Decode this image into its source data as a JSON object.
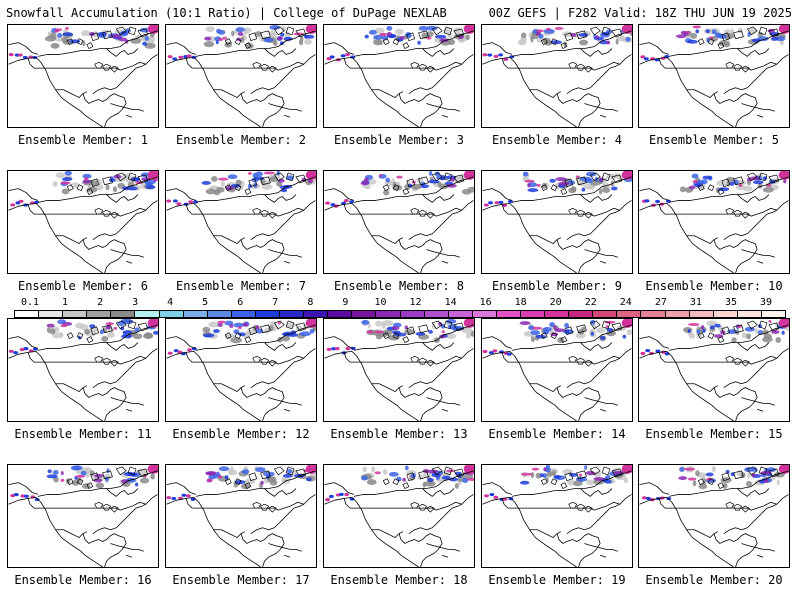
{
  "header": {
    "title_left": "Snowfall Accumulation (10:1 Ratio) | College of DuPage NEXLAB",
    "title_right": "00Z GEFS | F282 Valid: 18Z THU JUN 19 2025"
  },
  "panels": [
    {
      "label": "Ensemble Member: 1"
    },
    {
      "label": "Ensemble Member: 2"
    },
    {
      "label": "Ensemble Member: 3"
    },
    {
      "label": "Ensemble Member: 4"
    },
    {
      "label": "Ensemble Member: 5"
    },
    {
      "label": "Ensemble Member: 6"
    },
    {
      "label": "Ensemble Member: 7"
    },
    {
      "label": "Ensemble Member: 8"
    },
    {
      "label": "Ensemble Member: 9"
    },
    {
      "label": "Ensemble Member: 10"
    },
    {
      "label": "Ensemble Member: 11"
    },
    {
      "label": "Ensemble Member: 12"
    },
    {
      "label": "Ensemble Member: 13"
    },
    {
      "label": "Ensemble Member: 14"
    },
    {
      "label": "Ensemble Member: 15"
    },
    {
      "label": "Ensemble Member: 16"
    },
    {
      "label": "Ensemble Member: 17"
    },
    {
      "label": "Ensemble Member: 18"
    },
    {
      "label": "Ensemble Member: 19"
    },
    {
      "label": "Ensemble Member: 20"
    }
  ],
  "colorbar": {
    "labels": [
      "0.1",
      "1",
      "2",
      "3",
      "4",
      "5",
      "6",
      "7",
      "8",
      "9",
      "10",
      "12",
      "14",
      "16",
      "18",
      "20",
      "22",
      "24",
      "27",
      "31",
      "35",
      "39"
    ],
    "colors": [
      "#ffffff",
      "#e6e6e6",
      "#c8c8c8",
      "#a0a0a0",
      "#8a8a8a",
      "#b4f0f0",
      "#7fd0e6",
      "#7aaee8",
      "#5a8ae6",
      "#3c64e6",
      "#1e3cdc",
      "#2828c8",
      "#3c14b4",
      "#5a0aa0",
      "#7814a0",
      "#8c28b4",
      "#9a3cc8",
      "#b050d0",
      "#c864d8",
      "#dc78dc",
      "#e650c8",
      "#dc3cb4",
      "#d2329c",
      "#c82882",
      "#d24678",
      "#dc6482",
      "#e68296",
      "#eea0aa",
      "#f4bcbc",
      "#f8d4cc",
      "#fae6dc",
      "#fdf2ec"
    ]
  }
}
